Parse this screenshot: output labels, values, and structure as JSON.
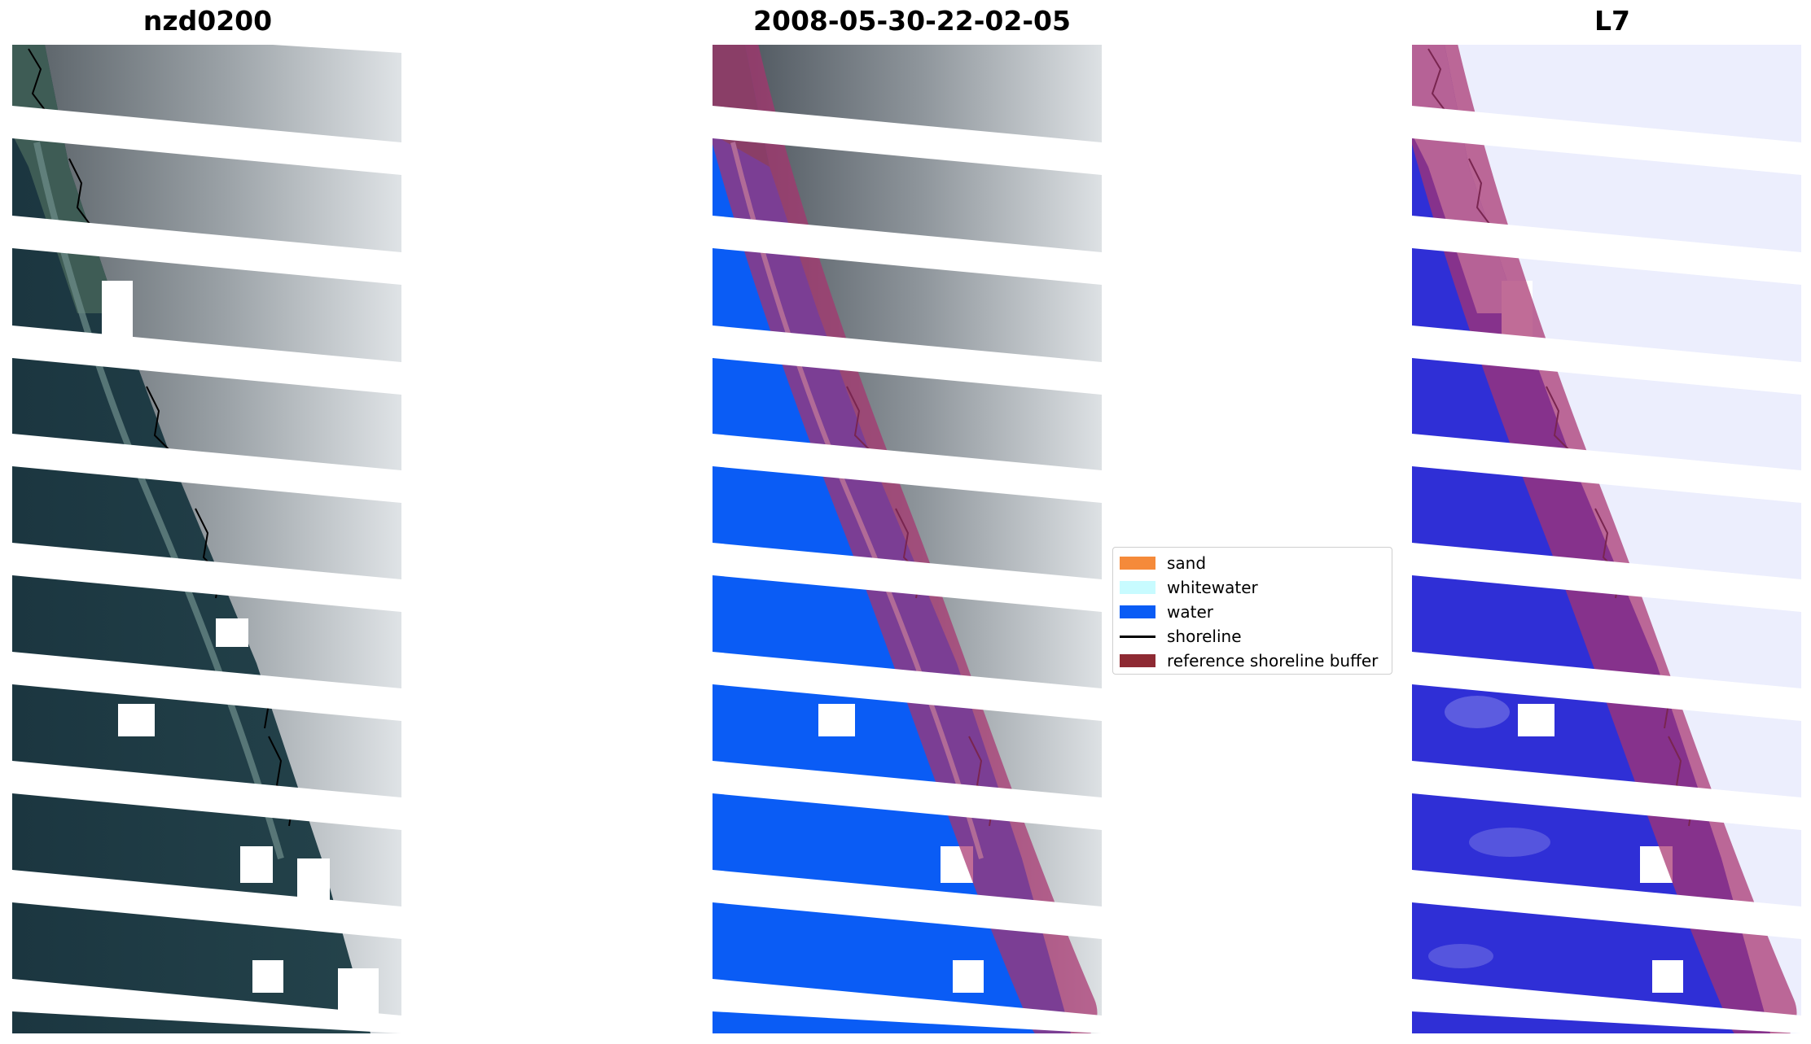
{
  "panels": [
    {
      "title": "nzd0200",
      "kind": "rgb"
    },
    {
      "title": "2008-05-30-22-02-05",
      "kind": "classified"
    },
    {
      "title": "L7",
      "kind": "index"
    }
  ],
  "legend": {
    "items": [
      {
        "label": "sand",
        "color": "#f58a3a",
        "type": "patch"
      },
      {
        "label": "whitewater",
        "color": "#c8fbff",
        "type": "patch"
      },
      {
        "label": "water",
        "color": "#0a5cf5",
        "type": "patch"
      },
      {
        "label": "shoreline",
        "color": "#000000",
        "type": "line"
      },
      {
        "label": "reference shoreline buffer",
        "color": "#8e2a33",
        "type": "patch"
      }
    ]
  },
  "colors": {
    "ocean_rgb": "#1c3a44",
    "land_rgb": "#3d5358",
    "cloud": "#d9dde0",
    "cloud_dark": "#6d7479",
    "water_class": "#0a5cf5",
    "whitewater": "#c8fbff",
    "buffer_overlay": "#a8336f",
    "index_water": "#2f2fd6",
    "index_land": "#eceefd",
    "shoreline": "#000000"
  }
}
